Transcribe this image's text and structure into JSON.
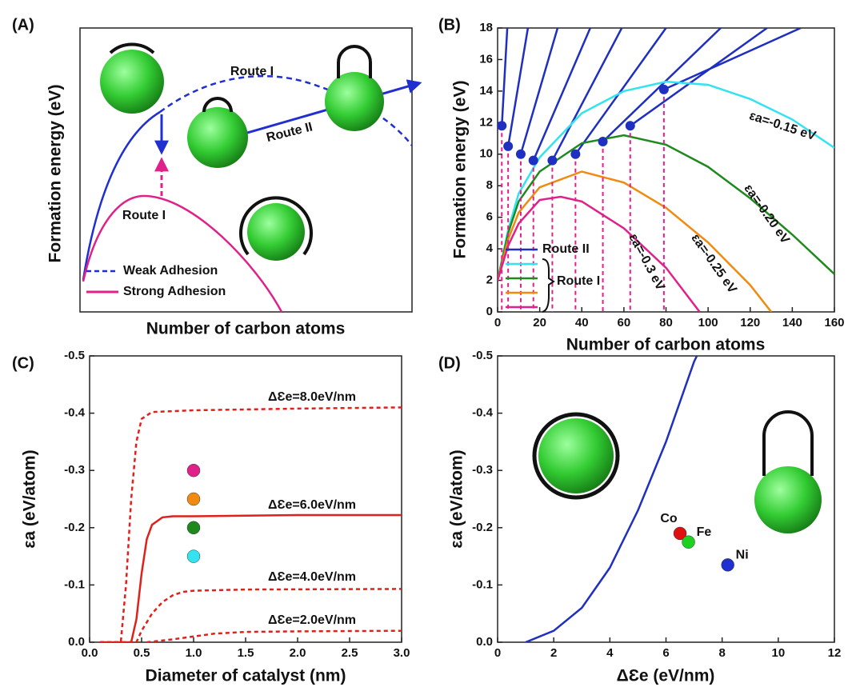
{
  "chart_data": [
    {
      "type": "schematic",
      "panel_label": "(A)",
      "xlabel": "Number of carbon atoms",
      "ylabel": "Formation energy (eV)",
      "annotations": [
        "Route I",
        "Route II",
        "Route I"
      ],
      "series": [
        {
          "name": "Weak Adhesion",
          "color": "#1f2fd0",
          "dash": true
        },
        {
          "name": "Strong Adhesion",
          "color": "#e0218a",
          "dash": false
        }
      ]
    },
    {
      "type": "line",
      "panel_label": "(B)",
      "xlabel": "Number of carbon atoms",
      "ylabel": "Formation energy (eV)",
      "xlim": [
        0,
        160
      ],
      "ylim": [
        0,
        18
      ],
      "xticks": [
        0,
        20,
        40,
        60,
        80,
        100,
        120,
        140,
        160
      ],
      "yticks": [
        0,
        2,
        4,
        6,
        8,
        10,
        12,
        14,
        16,
        18
      ],
      "group_label": "Route I",
      "annotations": [
        "εa=-0.15 eV",
        "εa=-0.20 eV",
        "εa=-0.25 eV",
        "εa=-0.3 eV"
      ],
      "series": [
        {
          "name": "Route II",
          "color": "#1f2fbf",
          "x": [
            2,
            4.6,
            null,
            5,
            14.4,
            null,
            11,
            28.5,
            null,
            17,
            44,
            null,
            26,
            59,
            null,
            37,
            80,
            null,
            50,
            106,
            null,
            63,
            128,
            null,
            79,
            144
          ],
          "values": [
            11.8,
            18,
            null,
            10.5,
            18,
            null,
            10,
            18,
            null,
            9.6,
            18,
            null,
            9.6,
            18,
            null,
            10,
            18,
            null,
            10.8,
            18,
            null,
            11.8,
            18,
            null,
            14.1,
            18
          ]
        },
        {
          "color": "#33e3f0",
          "x": [
            0,
            5,
            10,
            20,
            40,
            60,
            80,
            100,
            120,
            140,
            160
          ],
          "values": [
            2,
            5.2,
            7.5,
            9.8,
            12.6,
            14,
            14.6,
            14.4,
            13.5,
            12.2,
            10.4
          ]
        },
        {
          "color": "#1e8a1e",
          "x": [
            0,
            5,
            10,
            20,
            40,
            60,
            80,
            100,
            120,
            140,
            160
          ],
          "values": [
            2,
            5,
            7,
            8.9,
            10.7,
            11.2,
            10.6,
            9.2,
            7.2,
            4.9,
            2.4
          ]
        },
        {
          "color": "#f08a10",
          "x": [
            0,
            5,
            10,
            20,
            40,
            60,
            80,
            100,
            120,
            130
          ],
          "values": [
            2,
            4.6,
            6.3,
            7.9,
            8.9,
            8.2,
            6.6,
            4.4,
            1.7,
            0
          ]
        },
        {
          "color": "#e0218a",
          "x": [
            0,
            5,
            10,
            20,
            30,
            40,
            60,
            80,
            96
          ],
          "values": [
            2,
            4.2,
            5.6,
            7.1,
            7.3,
            7,
            5.3,
            2.8,
            0
          ]
        },
        {
          "color": "#1f2fbf",
          "marker": "circle",
          "x": [
            2,
            5,
            11,
            17,
            26,
            37,
            50,
            63,
            79
          ],
          "values": [
            11.8,
            10.5,
            10,
            9.6,
            9.6,
            10,
            10.8,
            11.8,
            14.1
          ]
        }
      ]
    },
    {
      "type": "line",
      "panel_label": "(C)",
      "xlabel": "Diameter of catalyst (nm)",
      "ylabel": "εa (eV/atom)",
      "xlim": [
        0,
        3
      ],
      "ylim": [
        0,
        -0.5
      ],
      "xticks": [
        {
          "value": 0,
          "label": "0.0"
        },
        0.5,
        {
          "value": 1,
          "label": "1.0"
        },
        1.5,
        {
          "value": 2,
          "label": "2.0"
        },
        2.5,
        {
          "value": 3,
          "label": "3.0"
        }
      ],
      "yticks": [
        {
          "value": 0,
          "label": "0.0"
        },
        -0.1,
        -0.2,
        -0.3,
        -0.4,
        -0.5
      ],
      "series": [
        {
          "name": "ΔƐe=8.0eV/nm",
          "color": "#e0201a",
          "dash": true,
          "x": [
            0.1,
            0.3,
            0.35,
            0.4,
            0.45,
            0.5,
            0.6,
            1,
            2,
            3
          ],
          "values": [
            0,
            0,
            -0.1,
            -0.25,
            -0.35,
            -0.39,
            -0.402,
            -0.405,
            -0.408,
            -0.41
          ]
        },
        {
          "name": "ΔƐe=6.0eV/nm",
          "color": "#e0201a",
          "dash": false,
          "x": [
            0.1,
            0.4,
            0.45,
            0.5,
            0.55,
            0.6,
            0.7,
            0.8,
            1,
            2,
            3
          ],
          "values": [
            0,
            0,
            -0.04,
            -0.12,
            -0.18,
            -0.205,
            -0.218,
            -0.22,
            -0.22,
            -0.222,
            -0.222
          ]
        },
        {
          "name": "ΔƐe=4.0eV/nm",
          "color": "#e0201a",
          "dash": true,
          "x": [
            0.1,
            0.45,
            0.5,
            0.6,
            0.7,
            0.8,
            0.9,
            1,
            1.5,
            3
          ],
          "values": [
            0,
            0,
            -0.02,
            -0.05,
            -0.07,
            -0.082,
            -0.088,
            -0.09,
            -0.092,
            -0.093
          ]
        },
        {
          "name": "ΔƐe=2.0eV/nm",
          "color": "#e0201a",
          "dash": true,
          "x": [
            0.55,
            0.8,
            1,
            1.2,
            1.5,
            2,
            3
          ],
          "values": [
            0,
            -0.005,
            -0.01,
            -0.015,
            -0.018,
            -0.019,
            -0.02
          ]
        }
      ],
      "points": {
        "x": [
          1,
          1,
          1,
          1
        ],
        "values": [
          -0.3,
          -0.25,
          -0.2,
          -0.15
        ],
        "colors": [
          "#e0218a",
          "#f08a10",
          "#1e8a1e",
          "#33e3f0"
        ]
      }
    },
    {
      "type": "line",
      "panel_label": "(D)",
      "xlabel": "ΔƐe (eV/nm)",
      "ylabel": "εa (eV/atom)",
      "xlim": [
        0,
        12
      ],
      "ylim": [
        0,
        -0.5
      ],
      "xticks": [
        0,
        2,
        4,
        6,
        8,
        10,
        12
      ],
      "yticks": [
        {
          "value": 0,
          "label": "0.0"
        },
        -0.1,
        -0.2,
        -0.3,
        -0.4,
        -0.5
      ],
      "series": [
        {
          "color": "#1f2fbf",
          "dash": false,
          "x": [
            1,
            2,
            3,
            4,
            5,
            6,
            7,
            7.1
          ],
          "values": [
            0,
            -0.02,
            -0.06,
            -0.13,
            -0.23,
            -0.35,
            -0.49,
            -0.5
          ]
        }
      ],
      "points": {
        "labels": [
          "Co",
          "Fe",
          "Ni"
        ],
        "x": [
          6.5,
          6.8,
          8.2
        ],
        "values": [
          -0.19,
          -0.175,
          -0.135
        ],
        "colors": [
          "#e01010",
          "#20d020",
          "#1f2fd0"
        ]
      }
    }
  ]
}
